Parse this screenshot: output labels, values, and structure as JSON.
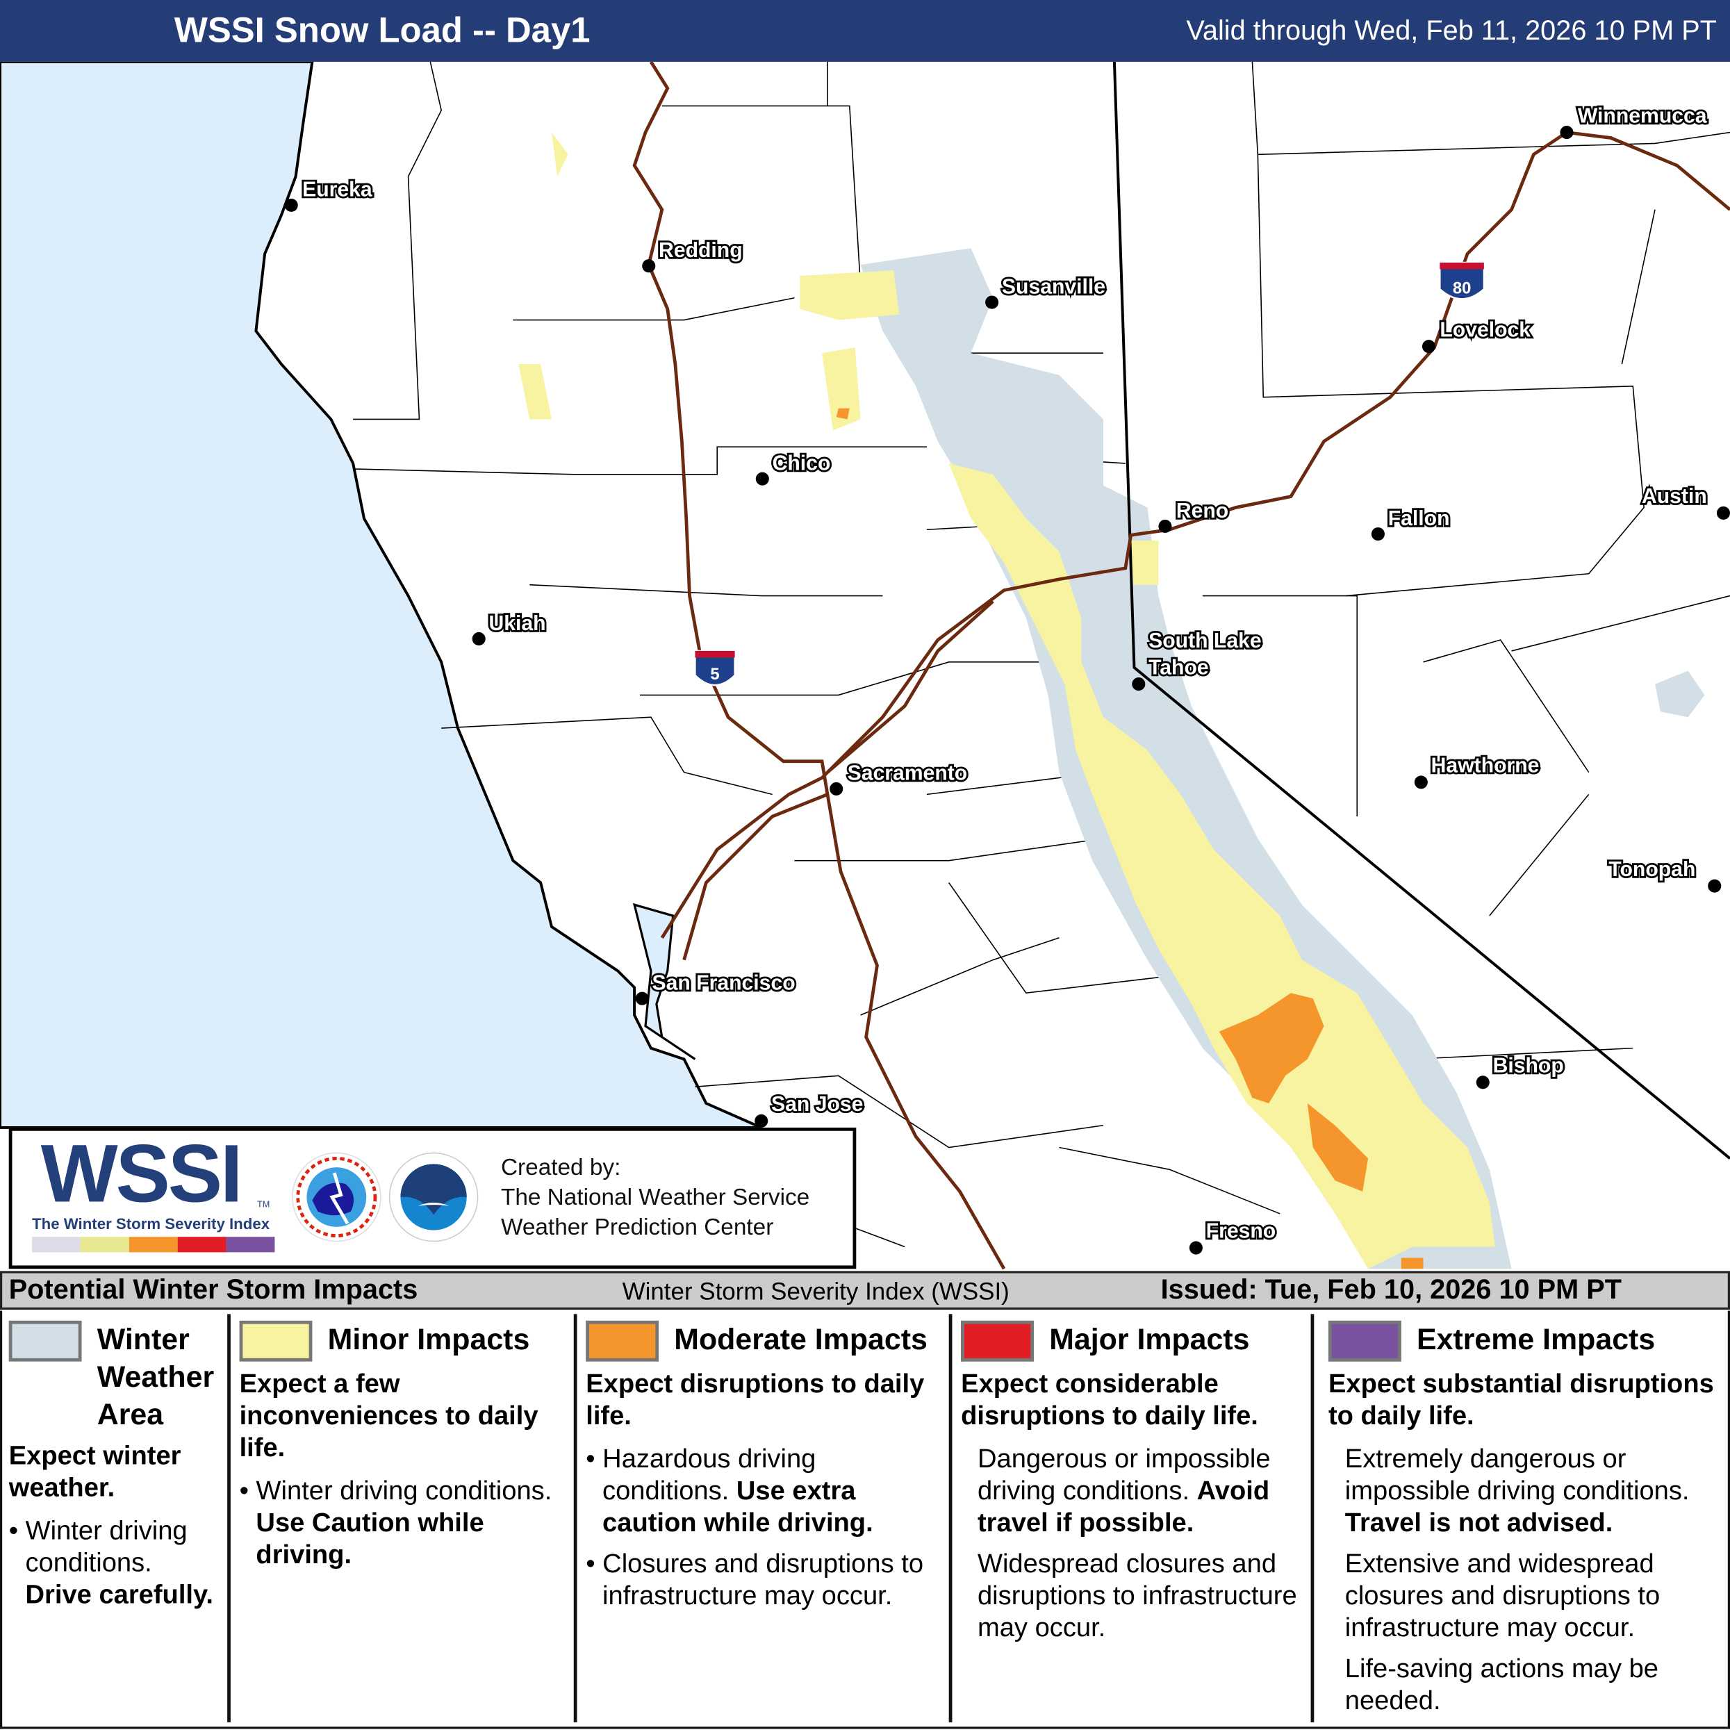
{
  "header": {
    "title": "WSSI Snow Load -- Day1",
    "valid": "Valid through Wed, Feb 11, 2026 10 PM PT"
  },
  "map": {
    "cities": [
      "Eureka",
      "Redding",
      "Susanville",
      "Chico",
      "Ukiah",
      "Reno",
      "South Lake",
      "Tahoe",
      "Sacramento",
      "San Francisco",
      "San Jose",
      "Fresno",
      "Winnemucca",
      "Lovelock",
      "Fallon",
      "Austin",
      "Hawthorne",
      "Tonopah",
      "Bishop"
    ],
    "shields": {
      "i5": "5",
      "i80": "80"
    },
    "colors": {
      "ocean": "#dcedfb",
      "winter_weather": "#d3dfe6",
      "minor": "#f7f3a0",
      "moderate": "#f5962d",
      "major": "#e31d25",
      "extreme": "#7a53a0",
      "road": "#6b2a0f"
    }
  },
  "logo": {
    "word": "WSSI",
    "tm": "TM",
    "subtitle": "The Winter Storm Severity Index",
    "created": [
      "Created by:",
      "The National Weather Service",
      "Weather Prediction Center"
    ]
  },
  "impacts_bar": {
    "title": "Potential Winter Storm Impacts",
    "mid": "Winter Storm Severity Index (WSSI)",
    "issued": "Issued: Tue, Feb 10, 2026 10 PM PT"
  },
  "legend": [
    {
      "label": [
        "Winter",
        "Weather",
        "Area"
      ],
      "lead": "Expect winter weather.",
      "bullet": "Winter driving conditions.",
      "bold": "Drive carefully."
    },
    {
      "label": "Minor Impacts",
      "lead": "Expect a few inconveniences to daily life.",
      "bullet": "Winter driving conditions.",
      "bold": "Use Caution while driving."
    },
    {
      "label": "Moderate Impacts",
      "lead": "Expect disruptions to daily life.",
      "bullet": "Hazardous driving conditions.",
      "bold": "Use extra caution while driving.",
      "bullet2": "Closures and disruptions to infrastructure may occur."
    },
    {
      "label": "Major Impacts",
      "lead": "Expect considerable disruptions to daily life.",
      "p1": "Dangerous or impossible driving conditions.",
      "bold": "Avoid travel if possible.",
      "p2": "Widespread closures and disruptions to infrastructure may occur."
    },
    {
      "label": "Extreme Impacts",
      "lead": "Expect substantial disruptions to daily life.",
      "p1": "Extremely dangerous or impossible driving conditions.",
      "bold": "Travel is not advised.",
      "p2": "Extensive and widespread closures and disruptions to infrastructure may occur.",
      "p3": "Life-saving actions may be needed."
    }
  ]
}
